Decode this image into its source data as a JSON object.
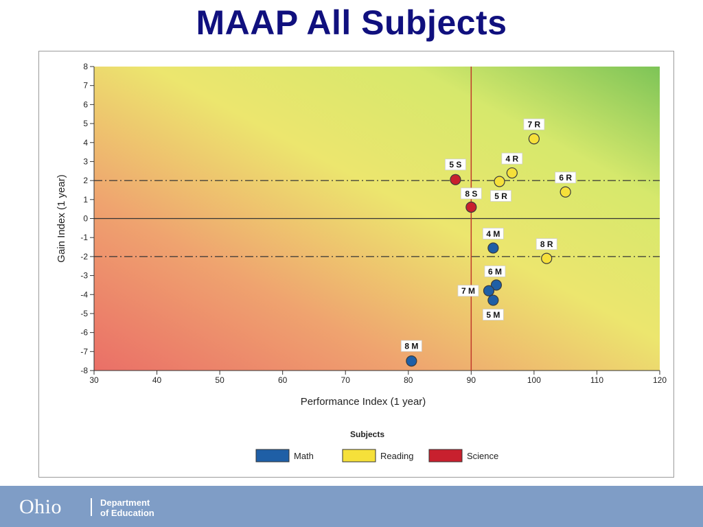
{
  "slide": {
    "title": "MAAP All Subjects"
  },
  "footer": {
    "logo_text": "Ohio",
    "dept_line1": "Department",
    "dept_line2": "of Education"
  },
  "colors": {
    "title": "#10107e",
    "footer_bg": "#7f9dc6",
    "Math": "#1f5fa6",
    "Reading": "#f6e03a",
    "Science": "#c8202e",
    "reference_line": "#c0392b"
  },
  "chart_data": {
    "type": "scatter",
    "title": "",
    "xlabel": "Performance Index (1 year)",
    "ylabel": "Gain Index (1 year)",
    "xlim": [
      30,
      120
    ],
    "ylim": [
      -8,
      8
    ],
    "xticks": [
      30,
      40,
      50,
      60,
      70,
      80,
      90,
      100,
      110,
      120
    ],
    "yticks": [
      8,
      7,
      6,
      5,
      4,
      3,
      2,
      1,
      0,
      -1,
      -2,
      -3,
      -4,
      -5,
      -6,
      -7,
      -8
    ],
    "background": "red-yellow-green gradient",
    "reference_lines": {
      "vertical_x": 90,
      "dashed_y": [
        2,
        -2
      ],
      "solid_y": 0
    },
    "legend": {
      "title": "Subjects",
      "position": "bottom",
      "entries": [
        "Math",
        "Reading",
        "Science"
      ]
    },
    "points": [
      {
        "label": "7 R",
        "subject": "Reading",
        "x": 100,
        "y": 4.2
      },
      {
        "label": "4 R",
        "subject": "Reading",
        "x": 96.5,
        "y": 2.4
      },
      {
        "label": "5 R",
        "subject": "Reading",
        "x": 94.5,
        "y": 1.95
      },
      {
        "label": "6 R",
        "subject": "Reading",
        "x": 105,
        "y": 1.4
      },
      {
        "label": "8 R",
        "subject": "Reading",
        "x": 102,
        "y": -2.1
      },
      {
        "label": "5 S",
        "subject": "Science",
        "x": 87.5,
        "y": 2.05
      },
      {
        "label": "8 S",
        "subject": "Science",
        "x": 90,
        "y": 0.6
      },
      {
        "label": "4 M",
        "subject": "Math",
        "x": 93.5,
        "y": -1.55
      },
      {
        "label": "6 M",
        "subject": "Math",
        "x": 94,
        "y": -3.5
      },
      {
        "label": "7 M",
        "subject": "Math",
        "x": 92.8,
        "y": -3.8
      },
      {
        "label": "5 M",
        "subject": "Math",
        "x": 93.5,
        "y": -4.3
      },
      {
        "label": "8 M",
        "subject": "Math",
        "x": 80.5,
        "y": -7.5
      }
    ]
  }
}
